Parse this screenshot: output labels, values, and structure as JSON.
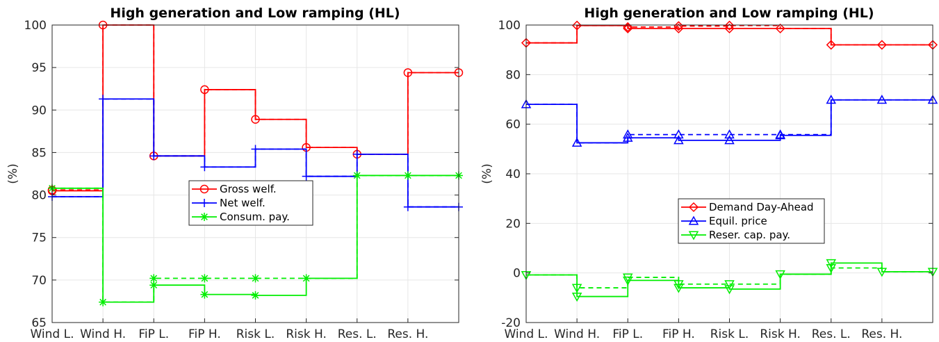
{
  "chart_data": [
    {
      "type": "line",
      "title": "High generation and Low ramping (HL)",
      "ylabel": "(%)",
      "xlabel": "",
      "categories": [
        "Wind L.",
        "Wind H.",
        "FiP L.",
        "FiP H.",
        "Risk L.",
        "Risk H.",
        "Res. L.",
        "Res. H."
      ],
      "ylim": [
        65,
        100
      ],
      "yticks": [
        65,
        70,
        75,
        80,
        85,
        90,
        95,
        100
      ],
      "grid": true,
      "legend_position": "center",
      "series": [
        {
          "name": "Gross welf.",
          "color": "#ff0000",
          "marker": "circle",
          "values": [
            80.5,
            100,
            84.6,
            92.4,
            88.9,
            85.6,
            84.8,
            94.4
          ],
          "dashed_values": [
            80.6,
            100,
            84.6,
            92.4,
            88.9,
            85.6,
            84.8,
            94.4
          ]
        },
        {
          "name": "Net welf.",
          "color": "#0000ff",
          "marker": "plus",
          "values": [
            79.8,
            91.3,
            84.6,
            83.3,
            85.4,
            82.2,
            84.8,
            78.6
          ],
          "dashed_values": [
            79.8,
            91.3,
            84.6,
            83.3,
            85.4,
            82.2,
            84.8,
            78.6
          ]
        },
        {
          "name": "Consum. pay.",
          "color": "#00ee00",
          "marker": "star",
          "values": [
            80.8,
            67.4,
            69.4,
            68.3,
            68.2,
            70.2,
            82.3,
            82.3
          ],
          "dashed_values": [
            80.8,
            67.4,
            70.2,
            70.2,
            70.2,
            70.2,
            82.3,
            82.3
          ]
        }
      ]
    },
    {
      "type": "line",
      "title": "High generation and Low ramping (HL)",
      "ylabel": "(%)",
      "xlabel": "",
      "categories": [
        "Wind L.",
        "Wind H.",
        "FiP L.",
        "FiP H.",
        "Risk L.",
        "Risk H.",
        "Res. L.",
        "Res. H."
      ],
      "ylim": [
        -20,
        100
      ],
      "yticks": [
        -20,
        0,
        20,
        40,
        60,
        80,
        100
      ],
      "grid": true,
      "legend_position": "center",
      "series": [
        {
          "name": "Demand Day-Ahead",
          "color": "#ff0000",
          "marker": "diamond",
          "values": [
            92.8,
            99.8,
            98.6,
            98.6,
            98.6,
            98.6,
            92.0,
            92.0
          ],
          "dashed_values": [
            92.8,
            99.8,
            99.2,
            99.6,
            99.8,
            98.6,
            92.0,
            92.0
          ]
        },
        {
          "name": "Equil. price",
          "color": "#0000ff",
          "marker": "triangle-up",
          "values": [
            68.0,
            52.5,
            54.5,
            53.5,
            53.5,
            55.5,
            69.8,
            69.8
          ],
          "dashed_values": [
            68.0,
            52.5,
            55.8,
            55.8,
            55.8,
            55.8,
            69.8,
            69.8
          ]
        },
        {
          "name": "Reser. cap. pay.",
          "color": "#00ee00",
          "marker": "triangle-down",
          "values": [
            -0.8,
            -9.5,
            -3.0,
            -6.0,
            -6.5,
            -0.5,
            4.0,
            0.5
          ],
          "dashed_values": [
            -0.8,
            -6.0,
            -1.8,
            -4.5,
            -4.5,
            -0.5,
            2.0,
            0.5
          ]
        }
      ]
    }
  ]
}
